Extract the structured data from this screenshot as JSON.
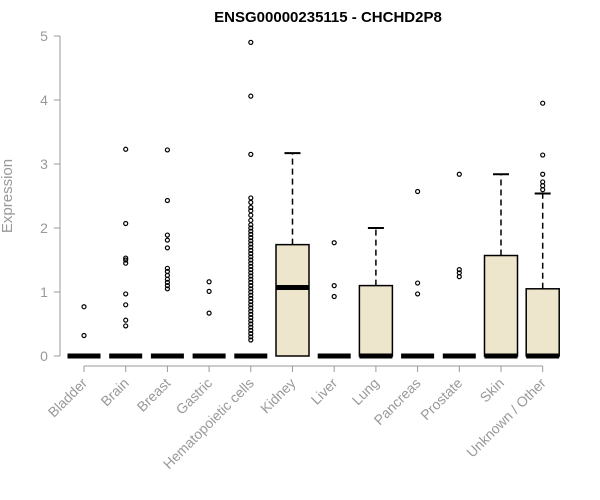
{
  "chart_data": {
    "type": "boxplot",
    "title": "ENSG00000235115 - CHCHD2P8",
    "ylabel": "Expression",
    "xlabel": "",
    "ylim": [
      0,
      5
    ],
    "yticks": [
      0,
      1,
      2,
      3,
      4,
      5
    ],
    "grid": false,
    "box_color": "#ede5cc",
    "categories": [
      "Bladder",
      "Brain",
      "Breast",
      "Gastric",
      "Hematopoietic cells",
      "Kidney",
      "Liver",
      "Lung",
      "Pancreas",
      "Prostate",
      "Skin",
      "Unknown / Other"
    ],
    "boxes": [
      {
        "q1": 0,
        "median": 0,
        "q3": 0,
        "whisker_low": 0,
        "whisker_high": 0,
        "outliers": [
          0.32,
          0.77
        ]
      },
      {
        "q1": 0,
        "median": 0,
        "q3": 0,
        "whisker_low": 0,
        "whisker_high": 0,
        "outliers": [
          0.47,
          0.56,
          0.8,
          0.97,
          1.45,
          1.5,
          1.53,
          2.07,
          3.23
        ]
      },
      {
        "q1": 0,
        "median": 0,
        "q3": 0,
        "whisker_low": 0,
        "whisker_high": 0,
        "outliers": [
          1.05,
          1.1,
          1.15,
          1.2,
          1.26,
          1.32,
          1.37,
          1.69,
          1.81,
          1.89,
          2.43,
          3.22
        ]
      },
      {
        "q1": 0,
        "median": 0,
        "q3": 0,
        "whisker_low": 0,
        "whisker_high": 0,
        "outliers": [
          0.67,
          1.01,
          1.16
        ]
      },
      {
        "q1": 0,
        "median": 0,
        "q3": 0,
        "whisker_low": 0,
        "whisker_high": 0,
        "outliers": [
          0.25,
          0.3,
          0.35,
          0.4,
          0.45,
          0.5,
          0.55,
          0.6,
          0.65,
          0.7,
          0.75,
          0.8,
          0.85,
          0.9,
          0.95,
          1.0,
          1.05,
          1.1,
          1.15,
          1.2,
          1.25,
          1.3,
          1.35,
          1.4,
          1.45,
          1.5,
          1.55,
          1.6,
          1.65,
          1.7,
          1.75,
          1.8,
          1.85,
          1.9,
          1.95,
          2.0,
          2.05,
          2.12,
          2.2,
          2.27,
          2.32,
          2.4,
          2.47,
          3.15,
          4.06,
          4.9
        ]
      },
      {
        "q1": 0,
        "median": 1.07,
        "q3": 1.74,
        "whisker_low": 0,
        "whisker_high": 3.17,
        "outliers": []
      },
      {
        "q1": 0,
        "median": 0,
        "q3": 0,
        "whisker_low": 0,
        "whisker_high": 0,
        "outliers": [
          0.93,
          1.1,
          1.77
        ]
      },
      {
        "q1": 0,
        "median": 0,
        "q3": 1.1,
        "whisker_low": 0,
        "whisker_high": 2.0,
        "outliers": []
      },
      {
        "q1": 0,
        "median": 0,
        "q3": 0,
        "whisker_low": 0,
        "whisker_high": 0,
        "outliers": [
          0.97,
          1.14,
          2.57
        ]
      },
      {
        "q1": 0,
        "median": 0,
        "q3": 0,
        "whisker_low": 0,
        "whisker_high": 0,
        "outliers": [
          1.24,
          1.3,
          1.35,
          2.84
        ]
      },
      {
        "q1": 0,
        "median": 0,
        "q3": 1.57,
        "whisker_low": 0,
        "whisker_high": 2.84,
        "outliers": []
      },
      {
        "q1": 0,
        "median": 0,
        "q3": 1.05,
        "whisker_low": 0,
        "whisker_high": 2.54,
        "outliers": [
          2.6,
          2.66,
          2.72,
          2.84,
          3.14,
          3.95
        ]
      }
    ]
  }
}
